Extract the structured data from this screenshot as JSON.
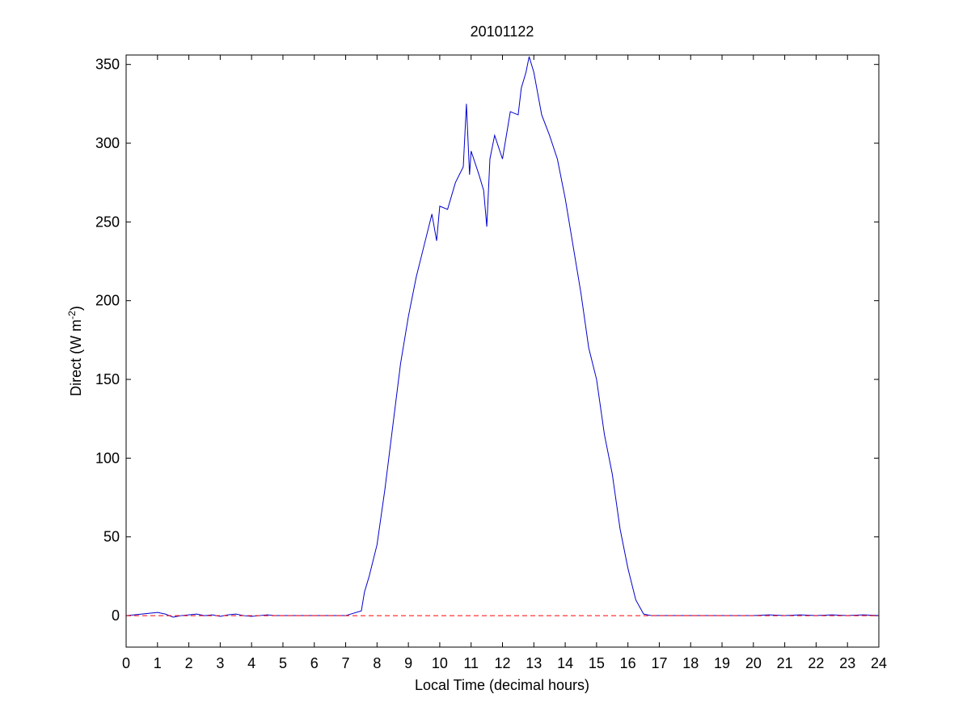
{
  "chart_data": {
    "type": "line",
    "title": "20101122",
    "xlabel": "Local Time (decimal hours)",
    "ylabel": {
      "text": "Direct (W m",
      "superscript": "-2",
      "suffix": ")"
    },
    "xlim": [
      0,
      24
    ],
    "ylim": [
      -20,
      356
    ],
    "xticks": [
      0,
      1,
      2,
      3,
      4,
      5,
      6,
      7,
      8,
      9,
      10,
      11,
      12,
      13,
      14,
      15,
      16,
      17,
      18,
      19,
      20,
      21,
      22,
      23,
      24
    ],
    "yticks": [
      0,
      50,
      100,
      150,
      200,
      250,
      300,
      350
    ],
    "reference_line": {
      "value": 0,
      "color": "#ff0000",
      "style": "dashed"
    },
    "series": [
      {
        "color": "#0000cc",
        "x": [
          0,
          0.25,
          0.5,
          0.75,
          1,
          1.25,
          1.5,
          1.75,
          2,
          2.25,
          2.5,
          2.75,
          3,
          3.25,
          3.5,
          3.75,
          4,
          4.25,
          4.5,
          4.75,
          5,
          5.5,
          6,
          6.5,
          7,
          7.5,
          7.6,
          7.75,
          8,
          8.25,
          8.5,
          8.75,
          9,
          9.25,
          9.5,
          9.75,
          9.9,
          10,
          10.25,
          10.5,
          10.75,
          10.85,
          10.95,
          11,
          11.25,
          11.4,
          11.5,
          11.6,
          11.75,
          12,
          12.25,
          12.5,
          12.6,
          12.75,
          12.85,
          13,
          13.25,
          13.5,
          13.75,
          14,
          14.25,
          14.5,
          14.75,
          15,
          15.25,
          15.5,
          15.75,
          16,
          16.25,
          16.5,
          16.75,
          17,
          18,
          19,
          20,
          20.5,
          21,
          21.5,
          22,
          22.5,
          23,
          23.5,
          24
        ],
        "values": [
          0,
          0.5,
          1,
          1.5,
          2,
          1,
          -1,
          0,
          0.5,
          1,
          0,
          0.5,
          -0.5,
          0.5,
          1,
          0,
          -0.5,
          0,
          0.5,
          0,
          0,
          0,
          0,
          0,
          0,
          3,
          15,
          25,
          45,
          80,
          120,
          160,
          190,
          215,
          235,
          255,
          238,
          260,
          258,
          275,
          285,
          325,
          280,
          295,
          280,
          270,
          247,
          290,
          305,
          290,
          320,
          318,
          335,
          345,
          355,
          345,
          318,
          305,
          290,
          265,
          235,
          205,
          170,
          150,
          115,
          90,
          55,
          30,
          10,
          1,
          0,
          0,
          0,
          0,
          0,
          0.5,
          0,
          0.5,
          0,
          0.5,
          0,
          0.5,
          0
        ]
      }
    ]
  }
}
